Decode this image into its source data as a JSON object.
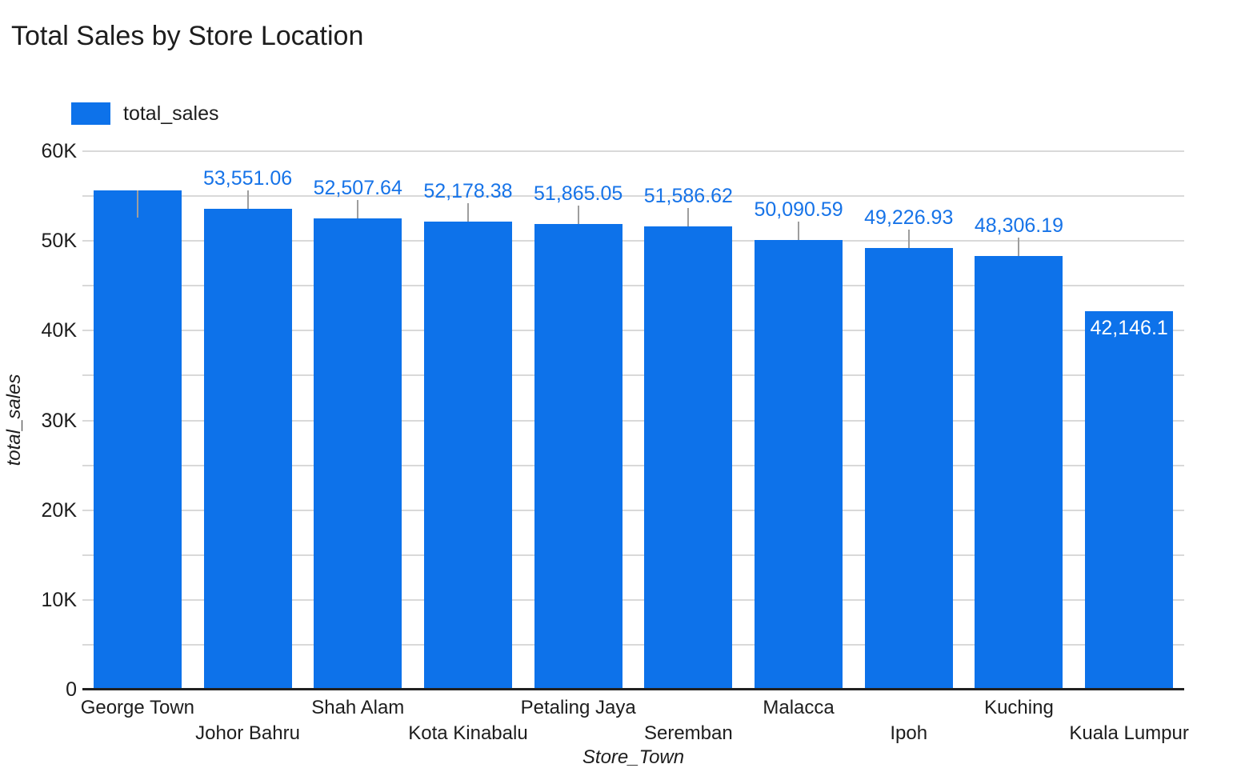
{
  "chart_title": "Total Sales by Store Location",
  "legend": {
    "label": "total_sales"
  },
  "axes": {
    "x_title": "Store_Town",
    "y_title": "total_sales",
    "y_tick_labels": [
      "0",
      "10K",
      "20K",
      "30K",
      "40K",
      "50K",
      "60K"
    ]
  },
  "colors": {
    "bar": "#0d72ea",
    "value_label": "#1673e8",
    "inside_label": "#ffffff",
    "gridline": "#d9d9d9",
    "baseline": "#212121",
    "leader_line": "#9e9e9e",
    "text": "#1d1d1d"
  },
  "chart_data": {
    "type": "bar",
    "title": "Total Sales by Store Location",
    "xlabel": "Store_Town",
    "ylabel": "total_sales",
    "legend": [
      "total_sales"
    ],
    "legend_position": "top-left",
    "grid": true,
    "ylim": [
      0,
      60000
    ],
    "ytick_label_step": 10000,
    "gridline_step": 5000,
    "categories": [
      "George Town",
      "Johor Bahru",
      "Shah Alam",
      "Kota Kinabalu",
      "Petaling Jaya",
      "Seremban",
      "Malacca",
      "Ipoh",
      "Kuching",
      "Kuala Lumpur"
    ],
    "values": [
      55620,
      53551.06,
      52507.64,
      52178.38,
      51865.05,
      51586.62,
      50090.59,
      49226.93,
      48306.19,
      42146.1
    ],
    "value_labels": [
      "",
      "53,551.06",
      "52,507.64",
      "52,178.38",
      "51,865.05",
      "51,586.62",
      "50,090.59",
      "49,226.93",
      "48,306.19",
      "42,146.1"
    ],
    "label_styles": [
      "leader-into-bar",
      "above",
      "above",
      "above",
      "above",
      "above",
      "above",
      "above",
      "above",
      "inside-top"
    ],
    "first_bar_value_estimated": true
  }
}
